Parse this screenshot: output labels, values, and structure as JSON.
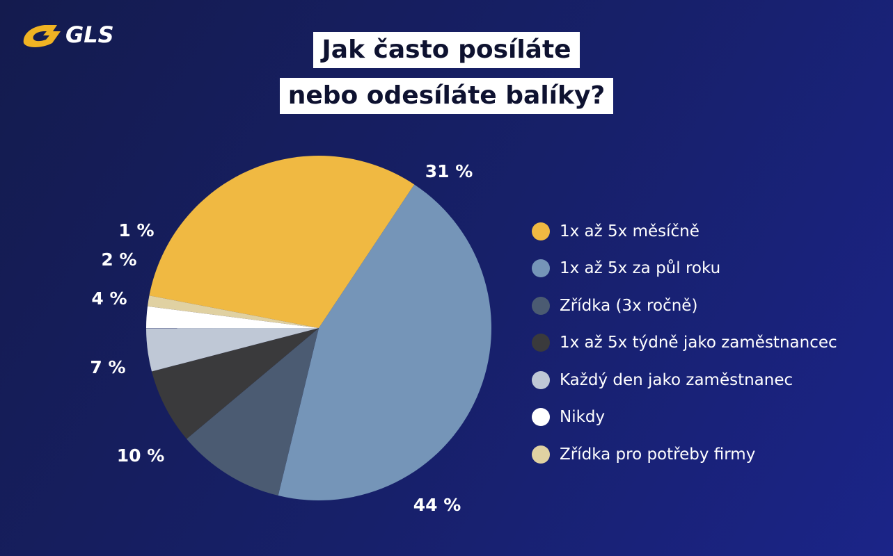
{
  "logo": {
    "text": "GLS",
    "color": "#f0b323"
  },
  "header": {
    "title_line1": "Jak často posíláte",
    "title_line2": "nebo odesíláte balíky?"
  },
  "chart_data": {
    "type": "pie",
    "title": "Jak často posíláte nebo odesíláte balíky?",
    "unit": "%",
    "legend_position": "right",
    "slices": [
      {
        "label": "1x až 5x měsíčně",
        "value": 31,
        "value_label": "31 %",
        "color": "#f0b942"
      },
      {
        "label": "1x až 5x za půl roku",
        "value": 44,
        "value_label": "44 %",
        "color": "#7595b8"
      },
      {
        "label": "Zřídka (3x ročně)",
        "value": 10,
        "value_label": "10 %",
        "color": "#4b5b72"
      },
      {
        "label": "1x až 5x týdně jako zaměstnancec",
        "value": 7,
        "value_label": "7 %",
        "color": "#3a3a3c"
      },
      {
        "label": "Každý den jako zaměstnanec",
        "value": 4,
        "value_label": "4 %",
        "color": "#bfc8d6"
      },
      {
        "label": "Nikdy",
        "value": 2,
        "value_label": "2 %",
        "color": "#ffffff"
      },
      {
        "label": "Zřídka pro potřeby firmy",
        "value": 1,
        "value_label": "1 %",
        "color": "#e0d1a2"
      }
    ]
  }
}
